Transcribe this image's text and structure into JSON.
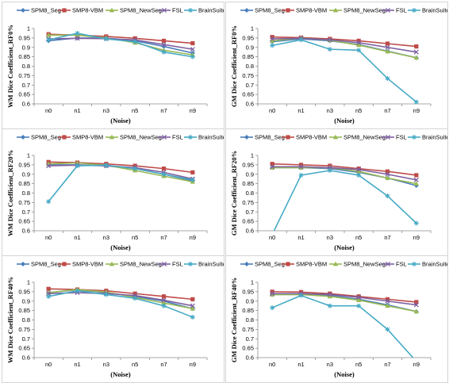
{
  "legend": [
    "SPM8_Seg",
    "SMP8-VBM",
    "SPM8_NewSeg",
    "FSL",
    "BrainSuite"
  ],
  "colors": [
    "#4a7ebb",
    "#be4b48",
    "#98b954",
    "#7d60a0",
    "#46aac5"
  ],
  "markers": [
    "diamond",
    "square",
    "triangle",
    "x",
    "star"
  ],
  "x_title": "(Noise)",
  "chart_data": [
    {
      "type": "line",
      "title": "",
      "ylabel": "WM Dice Coefficient_RF0%",
      "xlabel": "(Noise)",
      "categories": [
        "n0",
        "n1",
        "n3",
        "n5",
        "n7",
        "n9"
      ],
      "ylim": [
        0.6,
        1
      ],
      "yticks": [
        "0.6",
        "0.65",
        "0.7",
        "0.75",
        "0.8",
        "0.85",
        "0.9",
        "0.95",
        "1"
      ],
      "grid": false,
      "legend_position": "top",
      "series": [
        {
          "name": "SPM8_Seg",
          "values": [
            0.935,
            0.95,
            0.95,
            0.935,
            0.905,
            0.87
          ]
        },
        {
          "name": "SMP8-VBM",
          "values": [
            0.97,
            0.965,
            0.958,
            0.948,
            0.935,
            0.922
          ]
        },
        {
          "name": "SPM8_NewSeg",
          "values": [
            0.965,
            0.965,
            0.95,
            0.925,
            0.885,
            0.86
          ]
        },
        {
          "name": "FSL",
          "values": [
            0.945,
            0.948,
            0.946,
            0.94,
            0.915,
            0.89
          ]
        },
        {
          "name": "BrainSuite",
          "values": [
            0.94,
            0.975,
            0.945,
            0.93,
            0.875,
            0.85
          ]
        }
      ]
    },
    {
      "type": "line",
      "title": "",
      "ylabel": "GM Dice Coefficient_RF0%",
      "xlabel": "(Noise)",
      "categories": [
        "n0",
        "n1",
        "n3",
        "n5",
        "n7",
        "n9"
      ],
      "ylim": [
        0.6,
        1
      ],
      "yticks": [
        "0.6",
        "0.65",
        "0.7",
        "0.75",
        "0.8",
        "0.85",
        "0.9",
        "0.95",
        "1"
      ],
      "grid": false,
      "legend_position": "top",
      "series": [
        {
          "name": "SPM8_Seg",
          "values": [
            0.93,
            0.945,
            0.935,
            0.915,
            0.88,
            0.845
          ]
        },
        {
          "name": "SMP8-VBM",
          "values": [
            0.955,
            0.952,
            0.945,
            0.935,
            0.92,
            0.905
          ]
        },
        {
          "name": "SPM8_NewSeg",
          "values": [
            0.935,
            0.95,
            0.938,
            0.912,
            0.878,
            0.845
          ]
        },
        {
          "name": "FSL",
          "values": [
            0.945,
            0.948,
            0.94,
            0.925,
            0.9,
            0.875
          ]
        },
        {
          "name": "BrainSuite",
          "values": [
            0.91,
            0.94,
            0.89,
            0.885,
            0.735,
            0.61
          ]
        }
      ]
    },
    {
      "type": "line",
      "title": "",
      "ylabel": "WM Dice Coefficient_RF20%",
      "xlabel": "(Noise)",
      "categories": [
        "n0",
        "n1",
        "n3",
        "n5",
        "n7",
        "n9"
      ],
      "ylim": [
        0.6,
        1
      ],
      "yticks": [
        "0.6",
        "0.65",
        "0.7",
        "0.75",
        "0.8",
        "0.85",
        "0.9",
        "0.95",
        "1"
      ],
      "grid": false,
      "legend_position": "top",
      "series": [
        {
          "name": "SPM8_Seg",
          "values": [
            0.95,
            0.95,
            0.945,
            0.93,
            0.9,
            0.865
          ]
        },
        {
          "name": "SMP8-VBM",
          "values": [
            0.965,
            0.962,
            0.955,
            0.945,
            0.93,
            0.91
          ]
        },
        {
          "name": "SPM8_NewSeg",
          "values": [
            0.955,
            0.96,
            0.948,
            0.92,
            0.89,
            0.86
          ]
        },
        {
          "name": "FSL",
          "values": [
            0.945,
            0.948,
            0.945,
            0.935,
            0.91,
            0.875
          ]
        },
        {
          "name": "BrainSuite",
          "values": [
            0.755,
            0.945,
            0.948,
            0.93,
            0.9,
            0.87
          ]
        }
      ]
    },
    {
      "type": "line",
      "title": "",
      "ylabel": "GM Dice Coefficient_RF20%",
      "xlabel": "(Noise)",
      "categories": [
        "n0",
        "n1",
        "n3",
        "n5",
        "n7",
        "n9"
      ],
      "ylim": [
        0.6,
        1
      ],
      "yticks": [
        "0.6",
        "0.65",
        "0.7",
        "0.75",
        "0.8",
        "0.85",
        "0.9",
        "0.95",
        "1"
      ],
      "grid": false,
      "legend_position": "top",
      "series": [
        {
          "name": "SPM8_Seg",
          "values": [
            0.935,
            0.935,
            0.93,
            0.91,
            0.88,
            0.84
          ]
        },
        {
          "name": "SMP8-VBM",
          "values": [
            0.955,
            0.95,
            0.945,
            0.93,
            0.915,
            0.895
          ]
        },
        {
          "name": "SPM8_NewSeg",
          "values": [
            0.935,
            0.935,
            0.935,
            0.915,
            0.88,
            0.85
          ]
        },
        {
          "name": "FSL",
          "values": [
            0.94,
            0.94,
            0.935,
            0.925,
            0.9,
            0.87
          ]
        },
        {
          "name": "BrainSuite",
          "values": [
            0.58,
            0.895,
            0.92,
            0.895,
            0.785,
            0.64
          ]
        }
      ]
    },
    {
      "type": "line",
      "title": "",
      "ylabel": "WM Dice Coefficient_RF40%",
      "xlabel": "(Noise)",
      "categories": [
        "n0",
        "n1",
        "n3",
        "n5",
        "n7",
        "n9"
      ],
      "ylim": [
        0.6,
        1
      ],
      "yticks": [
        "0.6",
        "0.65",
        "0.7",
        "0.75",
        "0.8",
        "0.85",
        "0.9",
        "0.95",
        "1"
      ],
      "grid": false,
      "legend_position": "top",
      "series": [
        {
          "name": "SPM8_Seg",
          "values": [
            0.945,
            0.96,
            0.945,
            0.925,
            0.9,
            0.86
          ]
        },
        {
          "name": "SMP8-VBM",
          "values": [
            0.965,
            0.962,
            0.955,
            0.94,
            0.925,
            0.91
          ]
        },
        {
          "name": "SPM8_NewSeg",
          "values": [
            0.945,
            0.962,
            0.948,
            0.92,
            0.89,
            0.86
          ]
        },
        {
          "name": "FSL",
          "values": [
            0.94,
            0.945,
            0.94,
            0.93,
            0.905,
            0.875
          ]
        },
        {
          "name": "BrainSuite",
          "values": [
            0.925,
            0.955,
            0.935,
            0.915,
            0.875,
            0.815
          ]
        }
      ]
    },
    {
      "type": "line",
      "title": "",
      "ylabel": "GM Dice Coefficient_RF40%",
      "xlabel": "(Noise)",
      "categories": [
        "n0",
        "n1",
        "n3",
        "n5",
        "n7",
        "n9"
      ],
      "ylim": [
        0.6,
        1
      ],
      "yticks": [
        "0.6",
        "0.65",
        "0.7",
        "0.75",
        "0.8",
        "0.85",
        "0.9",
        "0.95",
        "1"
      ],
      "grid": false,
      "legend_position": "top",
      "series": [
        {
          "name": "SPM8_Seg",
          "values": [
            0.935,
            0.935,
            0.93,
            0.91,
            0.88,
            0.845
          ]
        },
        {
          "name": "SMP8-VBM",
          "values": [
            0.95,
            0.948,
            0.94,
            0.925,
            0.91,
            0.895
          ]
        },
        {
          "name": "SPM8_NewSeg",
          "values": [
            0.935,
            0.935,
            0.925,
            0.905,
            0.875,
            0.845
          ]
        },
        {
          "name": "FSL",
          "values": [
            0.94,
            0.94,
            0.935,
            0.92,
            0.9,
            0.88
          ]
        },
        {
          "name": "BrainSuite",
          "values": [
            0.865,
            0.93,
            0.875,
            0.875,
            0.75,
            0.58
          ]
        }
      ]
    }
  ]
}
